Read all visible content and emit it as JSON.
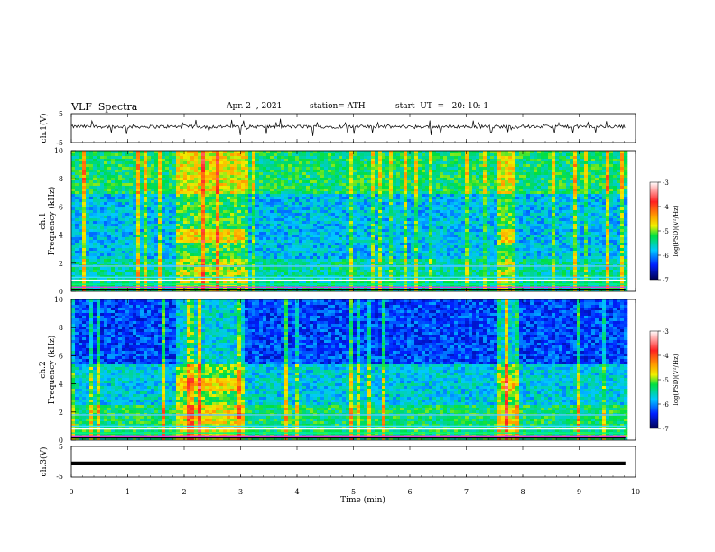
{
  "header": {
    "title": "VLF  Spectra",
    "date": "Apr. 2  , 2021",
    "station": "station= ATH",
    "start_ut": "start  UT  =   20: 10: 1"
  },
  "chart_data": [
    {
      "type": "line",
      "panel": "ch1-waveform",
      "ylabel": "ch.1(V)",
      "yticks": [
        "5",
        "-5"
      ],
      "ylim": [
        -5,
        5
      ],
      "series": [
        {
          "values_description_free": true,
          "level": 0.5,
          "noise": 0.6
        }
      ],
      "color": "#000000"
    },
    {
      "type": "heatmap",
      "panel": "ch1-spectrogram",
      "ylabel": "ch.1\nFrequency  (kHz)",
      "ylim": [
        0,
        10
      ],
      "yticks": [
        "0",
        "2",
        "4",
        "6",
        "8",
        "10"
      ],
      "colorbar": {
        "label": "log(PSD)(V²/Hz)",
        "ticks": [
          "-3",
          "-4",
          "-5",
          "-6",
          "-7"
        ],
        "range": [
          -7,
          -3
        ]
      },
      "bursts_min": [
        [
          1.85,
          3.05
        ],
        [
          7.6,
          7.85
        ]
      ],
      "burst_band_khz": [
        3.5,
        4.5
      ]
    },
    {
      "type": "heatmap",
      "panel": "ch2-spectrogram",
      "ylabel": "ch.2\nFrequency  (kHz)",
      "ylim": [
        0,
        10
      ],
      "yticks": [
        "0",
        "2",
        "4",
        "6",
        "8",
        "10"
      ],
      "colorbar": {
        "label": "log(PSD)(V²/Hz)",
        "ticks": [
          "-3",
          "-4",
          "-5",
          "-6",
          "-7"
        ],
        "range": [
          -7,
          -3
        ]
      },
      "bursts_min": [
        [
          1.85,
          3.05
        ],
        [
          7.6,
          7.85
        ]
      ],
      "burst_band_khz": [
        3.5,
        4.5
      ]
    },
    {
      "type": "line",
      "panel": "ch3-waveform",
      "ylabel": "ch.3(V)",
      "yticks": [
        "5",
        "-5"
      ],
      "ylim": [
        -5,
        5
      ],
      "series": [
        {
          "level": -0.5
        }
      ],
      "color": "#000000"
    }
  ],
  "xaxis": {
    "label": "Time  (min)",
    "ticks": [
      "0",
      "1",
      "2",
      "3",
      "4",
      "5",
      "6",
      "7",
      "8",
      "9",
      "10"
    ],
    "xlim": [
      0,
      10
    ],
    "data_end": 9.82
  }
}
